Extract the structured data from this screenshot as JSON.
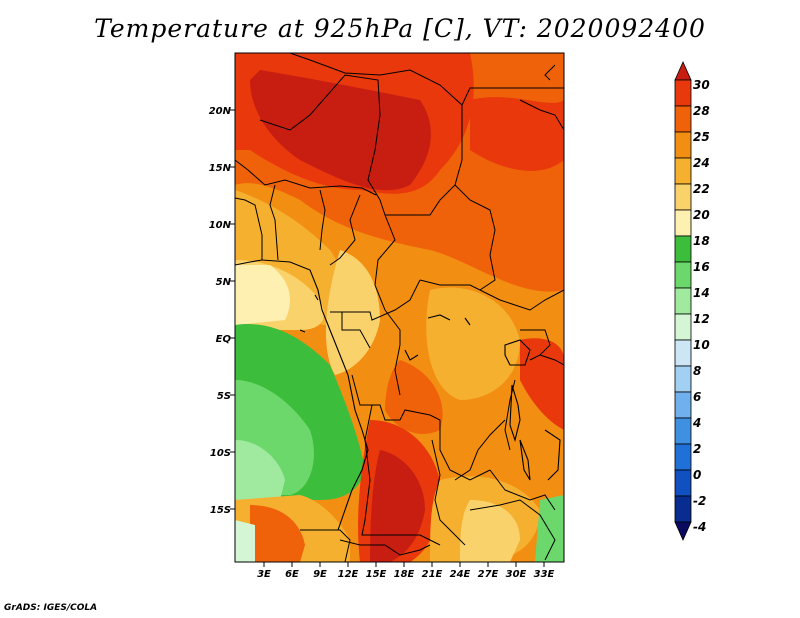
{
  "title": "Temperature at 925hPa [C], VT: 2020092400",
  "credit": "GrADS: IGES/COLA",
  "map": {
    "lon_labels": [
      "3E",
      "6E",
      "9E",
      "12E",
      "15E",
      "18E",
      "21E",
      "24E",
      "27E",
      "30E",
      "33E"
    ],
    "lat_labels": [
      "20N",
      "15N",
      "10N",
      "5N",
      "EQ",
      "5S",
      "10S",
      "15S"
    ]
  },
  "colorbar": {
    "labels": [
      "30",
      "28",
      "25",
      "24",
      "22",
      "20",
      "18",
      "16",
      "14",
      "12",
      "10",
      "8",
      "6",
      "4",
      "2",
      "0",
      "-2",
      "-4"
    ],
    "colors": [
      "#c81e12",
      "#e8380c",
      "#f0620a",
      "#f28e12",
      "#f5b030",
      "#fad26c",
      "#fdf0b0",
      "#3cbe3c",
      "#6cd86c",
      "#a0eaa0",
      "#d4f6d4",
      "#cce6f6",
      "#a2d0f2",
      "#70b0ec",
      "#4090e2",
      "#2070d8",
      "#1050c0",
      "#082c90",
      "#0a0a60"
    ]
  }
}
